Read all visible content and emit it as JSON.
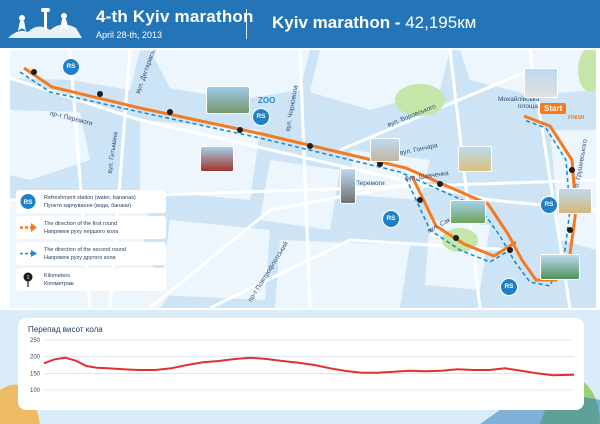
{
  "header": {
    "title": "4-th Kyiv marathon",
    "date": "April 28-th, 2013",
    "route_title": "Kyiv marathon - ",
    "distance": "42,195км"
  },
  "map": {
    "streets": [
      {
        "key": "peremohy",
        "text": "пр-т Перемоги"
      },
      {
        "key": "dehtiarivska",
        "text": "вул. Дегтярівська"
      },
      {
        "key": "hetmana",
        "text": "вул. Гетьмана"
      },
      {
        "key": "chornovola",
        "text": "вул. Чорновола"
      },
      {
        "key": "vorovskoho",
        "text": "вул. Воровського"
      },
      {
        "key": "honchara",
        "text": "вул. Гончара"
      },
      {
        "key": "shevchenka",
        "text": "бул. Шевченка"
      },
      {
        "key": "saksahanskoho",
        "text": "вул. Саксаганського"
      },
      {
        "key": "povitroflotskyi",
        "text": "пр-т Повітрофлотський"
      },
      {
        "key": "hrushevskoho",
        "text": "вул. Грушевського"
      }
    ],
    "places": {
      "peremohy_square": "Перемоги",
      "mykhailivska": "Михайлівська площа"
    },
    "zoo_label": "ZOO",
    "start_label": "Start",
    "finish_label": "FINISH",
    "rs_label": "RS"
  },
  "legend": {
    "refreshment": {
      "en": "Refreshment station (water, bananas)",
      "uk": "Пункти харчування (вода, банани)"
    },
    "first_round": {
      "en": "The direction of the first round",
      "uk": "Напрямок руху першого кола"
    },
    "second_round": {
      "en": "The direction of the second round",
      "uk": "Напрямок руху другого кола"
    },
    "kilometers": {
      "en": "Kilometers",
      "uk": "Кілометраж"
    }
  },
  "chart_data": {
    "type": "line",
    "title": "Перепад висот кола",
    "ylim": [
      100,
      250
    ],
    "yticks": [
      100,
      150,
      200,
      250
    ],
    "x": [
      0,
      2,
      4,
      6,
      8,
      10,
      12,
      15,
      18,
      21,
      24,
      27,
      30,
      33,
      36,
      39,
      42,
      45,
      48,
      51,
      54,
      57,
      60,
      63,
      66,
      69,
      72,
      75,
      78,
      81,
      84,
      87,
      90,
      93,
      96,
      98,
      100
    ],
    "values": [
      180,
      192,
      197,
      188,
      172,
      167,
      165,
      162,
      160,
      160,
      165,
      175,
      183,
      187,
      193,
      197,
      193,
      187,
      182,
      175,
      165,
      157,
      152,
      152,
      155,
      158,
      156,
      158,
      162,
      160,
      160,
      165,
      158,
      150,
      144,
      145,
      146
    ],
    "color": "#e03030"
  },
  "colors": {
    "header": "#2474b8",
    "route_first": "#f47a20",
    "route_second": "#1e8bd0",
    "map_bg": "#cde4f6",
    "block": "#eef6fd"
  }
}
